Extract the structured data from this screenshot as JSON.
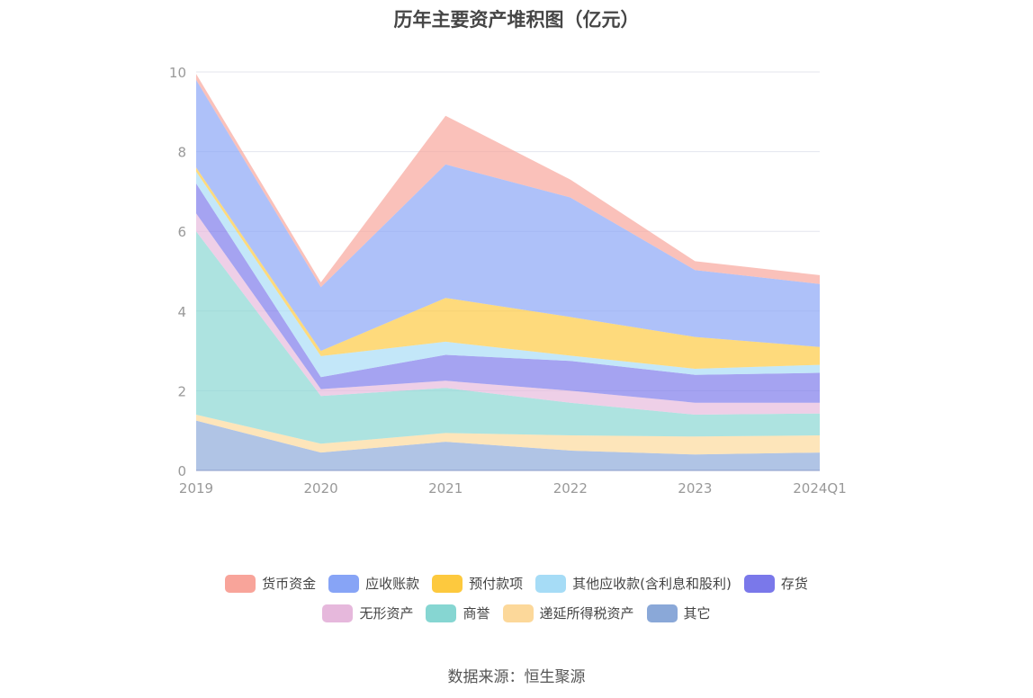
{
  "chart_data": {
    "type": "area",
    "stacked": true,
    "title": "历年主要资产堆积图（亿元）",
    "categories": [
      "2019",
      "2020",
      "2021",
      "2022",
      "2023",
      "2024Q1"
    ],
    "ylim": [
      0,
      10
    ],
    "yticks": [
      0,
      2,
      4,
      6,
      8,
      10
    ],
    "grid": true,
    "legend_position": "bottom",
    "series": [
      {
        "name": "其它",
        "color": "#8aa8d8",
        "values": [
          1.25,
          0.45,
          0.72,
          0.5,
          0.4,
          0.45
        ]
      },
      {
        "name": "递延所得税资产",
        "color": "#fcd89a",
        "values": [
          0.15,
          0.22,
          0.22,
          0.38,
          0.45,
          0.43
        ]
      },
      {
        "name": "商誉",
        "color": "#86d6d2",
        "values": [
          4.6,
          1.2,
          1.13,
          0.82,
          0.55,
          0.55
        ]
      },
      {
        "name": "无形资产",
        "color": "#e6b8dc",
        "values": [
          0.45,
          0.17,
          0.18,
          0.3,
          0.3,
          0.27
        ]
      },
      {
        "name": "存货",
        "color": "#7a78ea",
        "values": [
          0.75,
          0.3,
          0.65,
          0.75,
          0.7,
          0.75
        ]
      },
      {
        "name": "其他应收款(含利息和股利)",
        "color": "#a6dcf6",
        "values": [
          0.3,
          0.53,
          0.33,
          0.13,
          0.15,
          0.2
        ]
      },
      {
        "name": "预付款项",
        "color": "#fdc93e",
        "values": [
          0.1,
          0.13,
          1.1,
          0.97,
          0.8,
          0.45
        ]
      },
      {
        "name": "应收账款",
        "color": "#87a4f6",
        "values": [
          2.2,
          1.6,
          3.35,
          3.0,
          1.68,
          1.58
        ]
      },
      {
        "name": "货币资金",
        "color": "#f8a49a",
        "values": [
          0.15,
          0.12,
          1.22,
          0.45,
          0.22,
          0.22
        ]
      }
    ]
  },
  "legend_rows": [
    [
      8,
      7,
      6,
      5,
      4
    ],
    [
      3,
      2,
      1,
      0
    ]
  ],
  "source": "数据来源：恒生聚源"
}
